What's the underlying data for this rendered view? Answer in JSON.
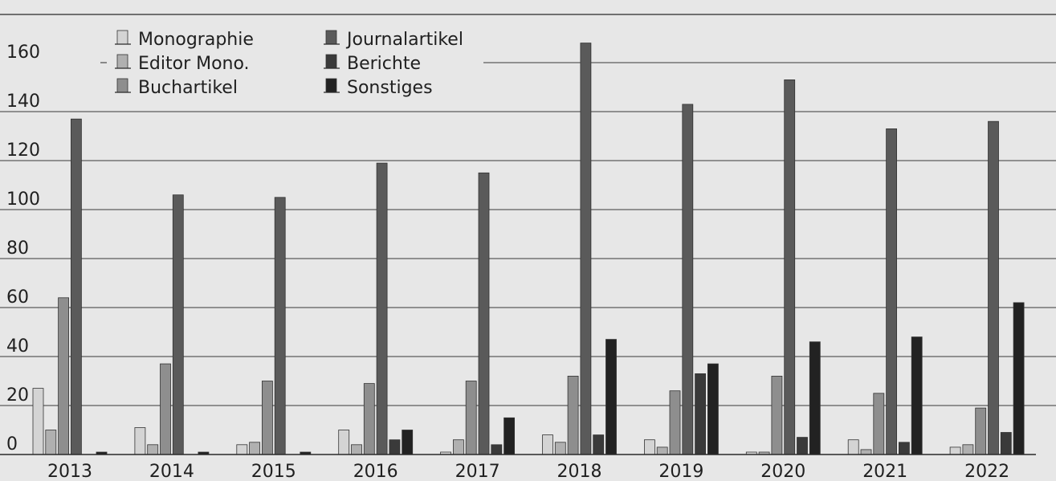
{
  "chart_data": {
    "type": "bar",
    "title": "",
    "xlabel": "",
    "ylabel": "",
    "categories": [
      "2013",
      "2014",
      "2015",
      "2016",
      "2017",
      "2018",
      "2019",
      "2020",
      "2021",
      "2022"
    ],
    "ylim": [
      0,
      180
    ],
    "yticks": [
      0,
      20,
      40,
      60,
      80,
      100,
      120,
      140,
      160
    ],
    "grid": "horizontal",
    "legend_position": "top-left",
    "series": [
      {
        "name": "Monographie",
        "color": "#d4d4d4",
        "values": [
          27,
          11,
          4,
          10,
          1,
          8,
          6,
          1,
          6,
          3
        ]
      },
      {
        "name": "Editor Mono.",
        "color": "#b0b0b0",
        "values": [
          10,
          4,
          5,
          4,
          6,
          5,
          3,
          1,
          2,
          4
        ]
      },
      {
        "name": "Buchartikel",
        "color": "#8e8e8e",
        "values": [
          64,
          37,
          30,
          29,
          30,
          32,
          26,
          32,
          25,
          19
        ]
      },
      {
        "name": "Journalartikel",
        "color": "#5a5a5a",
        "values": [
          137,
          106,
          105,
          119,
          115,
          168,
          143,
          153,
          133,
          136
        ]
      },
      {
        "name": "Berichte",
        "color": "#3a3a3a",
        "values": [
          0,
          0,
          0,
          6,
          4,
          8,
          33,
          7,
          5,
          9
        ]
      },
      {
        "name": "Sonstiges",
        "color": "#222222",
        "values": [
          1,
          1,
          1,
          10,
          15,
          47,
          37,
          46,
          48,
          62
        ]
      }
    ]
  }
}
